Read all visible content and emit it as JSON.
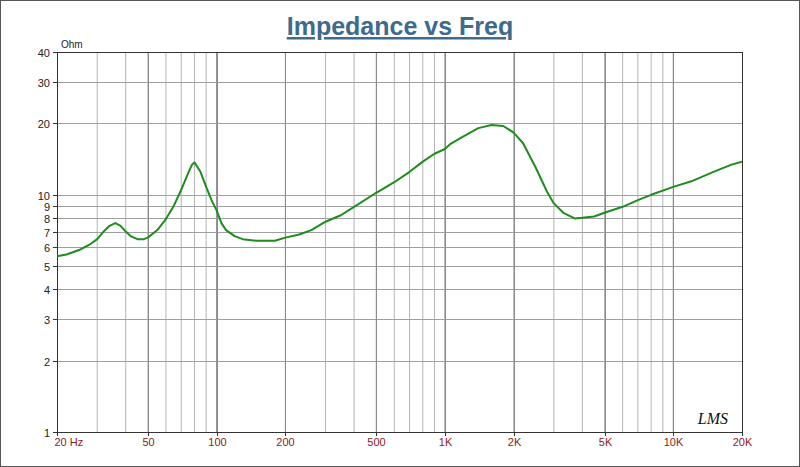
{
  "chart_data": {
    "type": "line",
    "title": "Impedance vs Freq",
    "y_label": "Ohm",
    "annotations": [
      "LMS"
    ],
    "x": [
      20,
      22,
      25,
      28,
      30,
      32,
      34,
      36,
      38,
      40,
      42,
      45,
      48,
      50,
      55,
      60,
      65,
      70,
      75,
      78,
      80,
      85,
      90,
      95,
      100,
      105,
      110,
      120,
      130,
      150,
      180,
      200,
      230,
      260,
      300,
      350,
      400,
      500,
      600,
      700,
      800,
      900,
      1000,
      1050,
      1200,
      1400,
      1600,
      1800,
      2000,
      2200,
      2500,
      2800,
      3000,
      3300,
      3700,
      4000,
      4500,
      5000,
      6000,
      7000,
      8000,
      10000,
      12000,
      15000,
      18000,
      20000
    ],
    "values": [
      5.5,
      5.6,
      5.85,
      6.2,
      6.5,
      7.0,
      7.4,
      7.6,
      7.4,
      7.0,
      6.7,
      6.5,
      6.5,
      6.6,
      7.1,
      7.9,
      9.0,
      10.5,
      12.3,
      13.4,
      13.7,
      12.5,
      10.8,
      9.5,
      8.6,
      7.6,
      7.1,
      6.7,
      6.5,
      6.4,
      6.4,
      6.6,
      6.8,
      7.1,
      7.7,
      8.2,
      8.9,
      10.2,
      11.3,
      12.5,
      13.8,
      14.9,
      15.6,
      16.3,
      17.6,
      19.1,
      19.7,
      19.5,
      18.3,
      16.5,
      13.0,
      10.3,
      9.2,
      8.4,
      7.95,
      8.0,
      8.1,
      8.4,
      8.9,
      9.5,
      10.0,
      10.8,
      11.4,
      12.5,
      13.4,
      13.8
    ],
    "color": "#1f8c1f",
    "xlim": [
      20,
      20000
    ],
    "ylim": [
      1,
      40
    ],
    "xticks": [
      {
        "value": 20,
        "label": "20 Hz"
      },
      50,
      100,
      200,
      500,
      {
        "value": 1000,
        "label": "1K"
      },
      {
        "value": 2000,
        "label": "2K"
      },
      {
        "value": 5000,
        "label": "5K"
      },
      {
        "value": 10000,
        "label": "10K"
      },
      {
        "value": 20000,
        "label": "20K"
      }
    ],
    "yticks": [
      1,
      2,
      3,
      4,
      5,
      6,
      7,
      8,
      9,
      10,
      20,
      30,
      40
    ],
    "log": true,
    "grid": true
  }
}
